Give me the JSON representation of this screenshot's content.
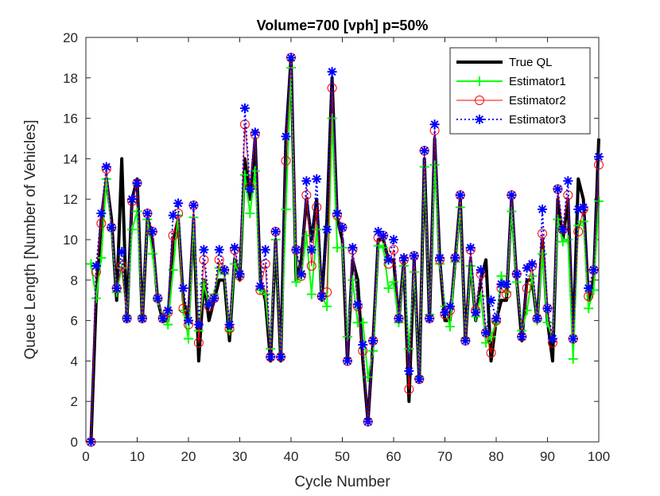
{
  "chart_data": {
    "type": "line",
    "title": "Volume=700 [vph] p=50%",
    "xlabel": "Cycle Number",
    "ylabel": "Queue Length [Number of Vehicles]",
    "xlim": [
      0,
      100
    ],
    "ylim": [
      0,
      20
    ],
    "xticks": [
      "0",
      "10",
      "20",
      "30",
      "40",
      "50",
      "60",
      "70",
      "80",
      "90",
      "100"
    ],
    "yticks": [
      "0",
      "2",
      "4",
      "6",
      "8",
      "10",
      "12",
      "14",
      "16",
      "18",
      "20"
    ],
    "legend_position": "top-right",
    "x": [
      1,
      2,
      3,
      4,
      5,
      6,
      7,
      8,
      9,
      10,
      11,
      12,
      13,
      14,
      15,
      16,
      17,
      18,
      19,
      20,
      21,
      22,
      23,
      24,
      25,
      26,
      27,
      28,
      29,
      30,
      31,
      32,
      33,
      34,
      35,
      36,
      37,
      38,
      39,
      40,
      41,
      42,
      43,
      44,
      45,
      46,
      47,
      48,
      49,
      50,
      51,
      52,
      53,
      54,
      55,
      56,
      57,
      58,
      59,
      60,
      61,
      62,
      63,
      64,
      65,
      66,
      67,
      68,
      69,
      70,
      71,
      72,
      73,
      74,
      75,
      76,
      77,
      78,
      79,
      80,
      81,
      82,
      83,
      84,
      85,
      86,
      87,
      88,
      89,
      90,
      91,
      92,
      93,
      94,
      95,
      96,
      97,
      98,
      99,
      100
    ],
    "series": [
      {
        "name": "True QL",
        "color": "#000000",
        "style": "solid-thick",
        "marker": "none",
        "values": [
          0,
          7,
          11,
          13,
          11,
          7,
          14,
          6,
          12,
          13,
          6,
          11,
          10,
          7,
          6,
          6,
          10,
          11,
          7,
          6,
          11,
          4,
          8,
          6,
          7,
          8,
          8,
          5,
          9,
          8,
          14,
          12,
          15,
          8,
          7,
          4,
          10,
          4,
          15,
          19,
          8,
          9,
          12,
          10,
          12,
          7,
          11,
          18,
          11,
          10,
          4,
          9,
          8,
          4,
          1,
          5,
          10,
          10,
          9,
          9,
          6,
          9,
          2,
          9,
          3,
          14,
          6,
          15,
          9,
          6,
          6,
          9,
          12,
          5,
          9,
          6,
          8,
          9,
          4,
          6,
          7,
          7,
          12,
          8,
          5,
          8,
          8,
          6,
          10,
          6,
          4,
          12,
          10,
          12,
          5,
          13,
          12,
          7,
          8,
          15
        ]
      },
      {
        "name": "Estimator1",
        "color": "#00ff00",
        "style": "solid",
        "marker": "plus",
        "values": [
          8.8,
          7.1,
          9.1,
          13.0,
          10.5,
          7.4,
          8.6,
          6.2,
          10.5,
          11.4,
          6.2,
          11.0,
          9.3,
          7.0,
          6.2,
          5.8,
          8.5,
          11.2,
          6.5,
          5.1,
          11.1,
          5.5,
          7.8,
          6.8,
          7.3,
          8.6,
          8.3,
          5.5,
          8.8,
          8.3,
          13.2,
          11.3,
          13.4,
          7.5,
          7.3,
          4.6,
          10.0,
          4.2,
          11.5,
          18.5,
          7.9,
          8.2,
          10.2,
          7.3,
          10.5,
          7.2,
          6.7,
          16.0,
          9.6,
          9.6,
          5.2,
          8.0,
          5.9,
          5.9,
          3.2,
          4.5,
          9.7,
          9.6,
          7.6,
          7.9,
          5.9,
          8.7,
          4.6,
          8.4,
          3.2,
          13.6,
          6.3,
          13.7,
          8.8,
          6.7,
          5.7,
          8.9,
          11.6,
          5.1,
          8.7,
          6.2,
          7.2,
          4.9,
          5.2,
          5.9,
          8.2,
          7.4,
          11.4,
          7.9,
          5.5,
          6.5,
          8.2,
          6.0,
          9.3,
          5.9,
          5.1,
          11.0,
          9.9,
          10.0,
          4.1,
          10.7,
          10.9,
          6.6,
          7.5,
          11.9
        ]
      },
      {
        "name": "Estimator2",
        "color": "#ff0000",
        "style": "solid-thin",
        "marker": "circle",
        "values": [
          0,
          8.4,
          10.8,
          13.5,
          10.6,
          7.6,
          8.7,
          6.1,
          11.9,
          12.8,
          6.1,
          11.3,
          10.4,
          7.1,
          6.1,
          6.4,
          10.2,
          11.3,
          6.6,
          5.8,
          11.7,
          4.9,
          9.0,
          6.7,
          7.1,
          9.0,
          8.5,
          5.6,
          9.5,
          8.2,
          15.7,
          12.6,
          15.2,
          7.5,
          8.8,
          4.2,
          10.4,
          4.2,
          13.9,
          19.0,
          9.5,
          8.2,
          12.2,
          8.7,
          11.6,
          7.2,
          7.4,
          17.5,
          11.2,
          10.6,
          4.0,
          9.5,
          6.7,
          4.5,
          1.0,
          5.0,
          10.1,
          10.2,
          8.8,
          9.5,
          6.1,
          9.0,
          2.6,
          9.2,
          3.1,
          14.4,
          6.1,
          15.4,
          9.0,
          6.3,
          6.5,
          9.1,
          12.2,
          5.0,
          9.5,
          6.5,
          8.3,
          5.4,
          4.4,
          6.0,
          7.6,
          7.3,
          12.2,
          8.3,
          5.2,
          7.6,
          8.7,
          6.1,
          10.3,
          6.6,
          4.9,
          12.5,
          10.5,
          12.2,
          5.1,
          10.4,
          11.5,
          7.2,
          8.5,
          13.7
        ]
      },
      {
        "name": "Estimator3",
        "color": "#0000ff",
        "style": "dotted",
        "marker": "asterisk",
        "values": [
          0,
          8.7,
          11.3,
          13.6,
          10.6,
          7.6,
          9.4,
          6.1,
          12.0,
          12.8,
          6.1,
          11.3,
          10.4,
          7.1,
          6.1,
          6.5,
          11.2,
          11.8,
          7.6,
          6.0,
          11.7,
          5.8,
          9.5,
          6.8,
          7.1,
          9.5,
          8.5,
          5.8,
          9.6,
          8.3,
          16.5,
          12.5,
          15.3,
          7.7,
          9.5,
          4.2,
          10.4,
          4.2,
          15.1,
          19.0,
          9.5,
          8.3,
          12.9,
          9.5,
          13.0,
          7.2,
          10.5,
          18.3,
          11.3,
          10.6,
          4.0,
          9.6,
          6.8,
          4.8,
          1.0,
          5.0,
          10.4,
          10.2,
          9.0,
          10.0,
          6.1,
          9.1,
          3.5,
          9.2,
          3.1,
          14.4,
          6.1,
          15.7,
          9.1,
          6.4,
          6.7,
          9.1,
          12.2,
          5.0,
          9.6,
          6.4,
          8.5,
          5.4,
          7.0,
          6.1,
          7.8,
          7.8,
          12.2,
          8.3,
          5.2,
          8.6,
          8.8,
          6.1,
          11.5,
          6.6,
          5.1,
          12.5,
          10.5,
          12.9,
          5.1,
          11.5,
          11.6,
          7.6,
          8.5,
          14.1
        ]
      }
    ]
  }
}
